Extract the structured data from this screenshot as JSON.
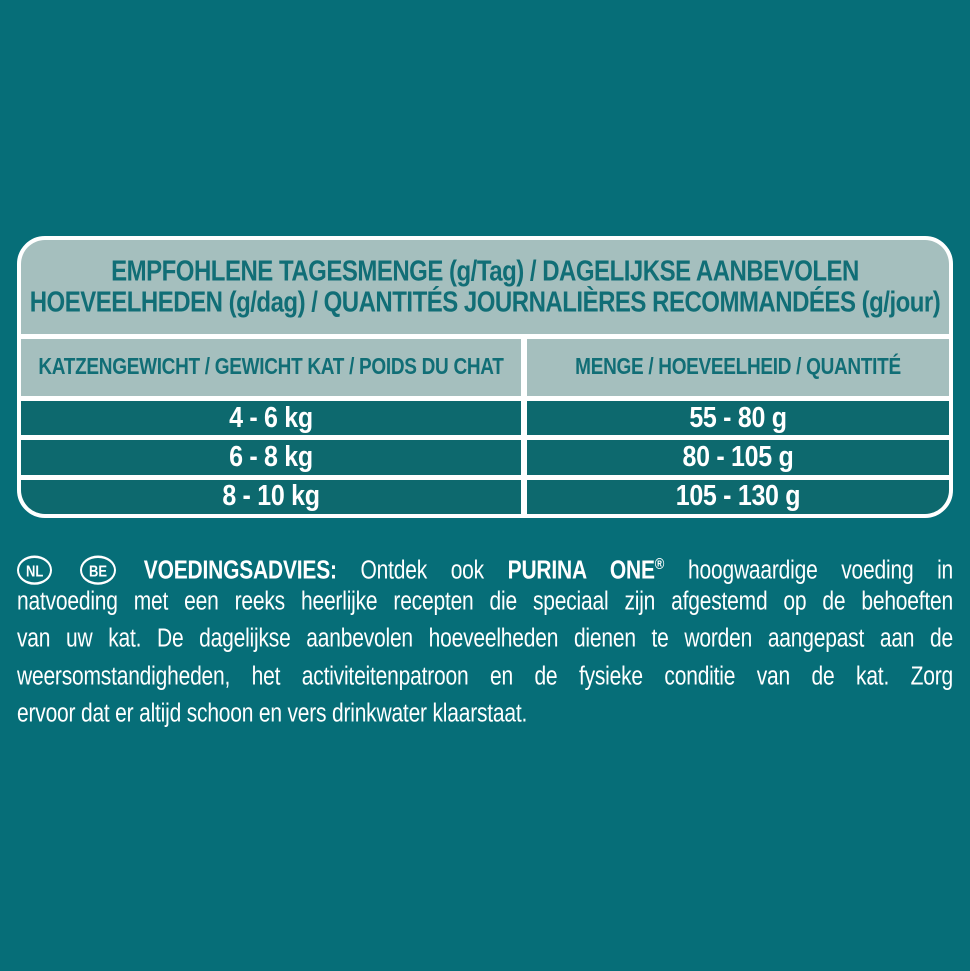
{
  "colors": {
    "background": "#066e78",
    "panel": "#a5bfbe",
    "panel_text": "#116e76",
    "row": "#0d696e",
    "white": "#ffffff"
  },
  "table": {
    "title_line1": "EMPFOHLENE TAGESMENGE (g/Tag) / DAGELIJKSE AANBEVOLEN",
    "title_line2": "HOEVEELHEDEN (g/dag) / QUANTITÉS JOURNALIÈRES RECOMMANDÉES (g/jour)",
    "columns": [
      "KATZENGEWICHT / GEWICHT KAT / POIDS DU CHAT",
      "MENGE / HOEVEELHEID / QUANTITÉ"
    ],
    "rows": [
      {
        "weight": "4 - 6 kg",
        "amount": "55 - 80 g"
      },
      {
        "weight": "6 - 8 kg",
        "amount": "80 - 105 g"
      },
      {
        "weight": "8 - 10 kg",
        "amount": "105 - 130 g"
      }
    ]
  },
  "advice": {
    "badges": [
      "NL",
      "BE"
    ],
    "label": "VOEDINGSADVIES:",
    "intro": "Ontdek ook",
    "brand": "PURINA ONE",
    "registered": "®",
    "line1_rest": "hoogwaardige voeding in",
    "lines": [
      "natvoeding met een reeks heerlijke recepten die speciaal zijn afgestemd op de behoeften",
      "van uw kat. De dagelijkse aanbevolen hoeveelheden dienen te worden aangepast aan de",
      "weersomstandigheden, het activiteitenpatroon en de fysieke conditie van de kat. Zorg",
      "ervoor dat er altijd schoon en vers drinkwater klaarstaat."
    ]
  }
}
